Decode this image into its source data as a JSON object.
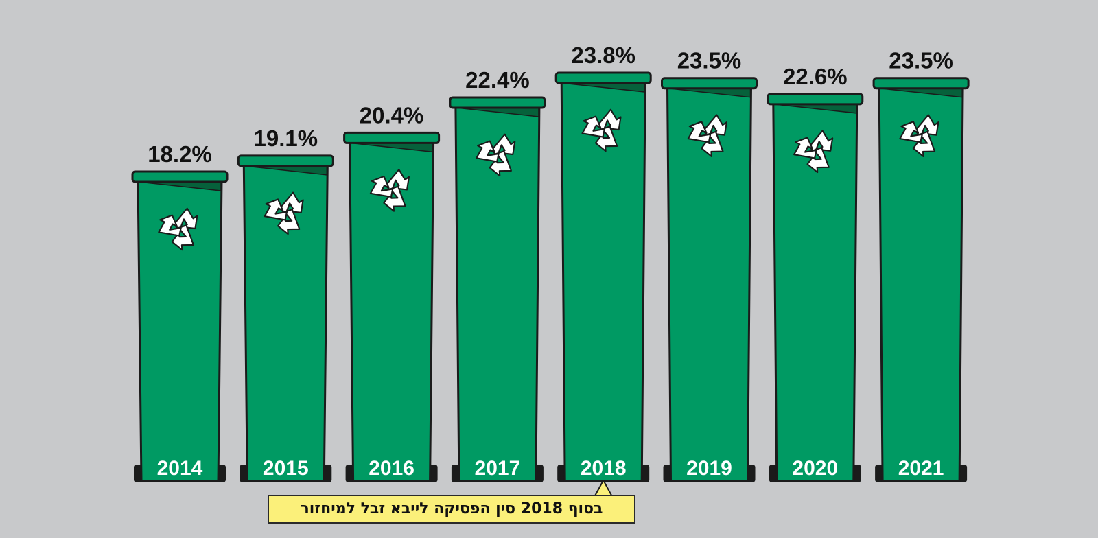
{
  "chart_data": {
    "type": "bar",
    "categories": [
      "2014",
      "2015",
      "2016",
      "2017",
      "2018",
      "2019",
      "2020",
      "2021"
    ],
    "values": [
      18.2,
      19.1,
      20.4,
      22.4,
      23.8,
      23.5,
      22.6,
      23.5
    ],
    "value_labels": [
      "18.2%",
      "19.1%",
      "20.4%",
      "22.4%",
      "23.8%",
      "23.5%",
      "22.6%",
      "23.5%"
    ],
    "bar_style": "recycling-bin",
    "bar_icon": "recycle-icon",
    "annotation": {
      "text": "בסוף 2018 סין הפסיקה לייבא זבל למיחזור",
      "category": "2018"
    }
  },
  "colors": {
    "background": "#c8c9cb",
    "bin_green": "#009a63",
    "lid_shadow": "#06613b",
    "outline": "#1b1b1b",
    "note_background": "#fbf07a"
  }
}
